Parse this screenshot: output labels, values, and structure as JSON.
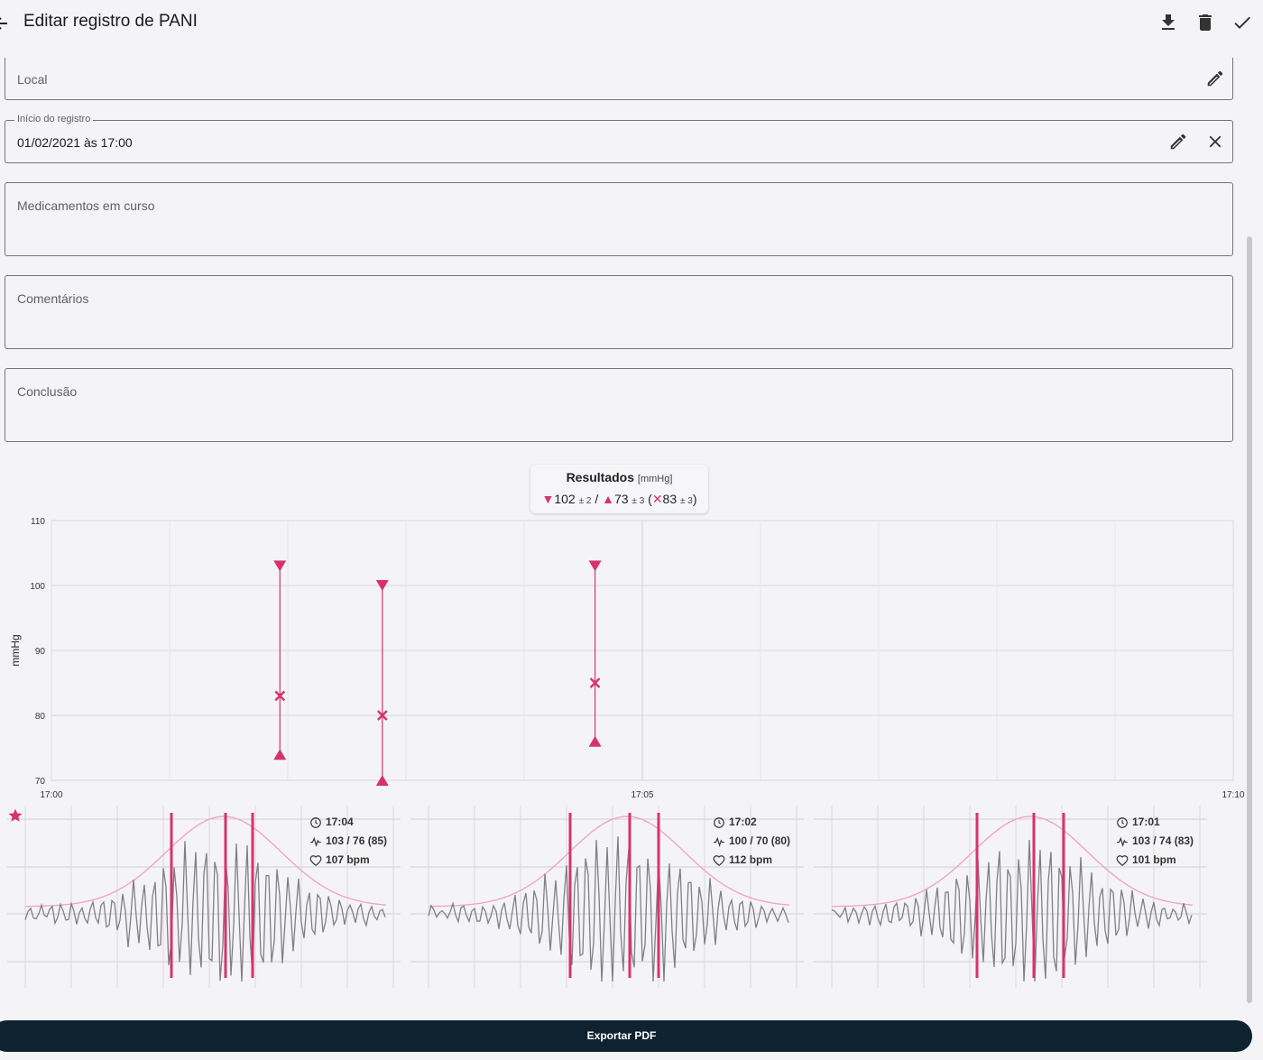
{
  "header": {
    "title": "Editar registro de PANI"
  },
  "fields": {
    "local": {
      "placeholder": "Local"
    },
    "start": {
      "label": "Início do registro",
      "value": "01/02/2021 às 17:00"
    },
    "meds": {
      "placeholder": "Medicamentos em curso"
    },
    "comments": {
      "placeholder": "Comentários"
    },
    "conclusion": {
      "placeholder": "Conclusão"
    }
  },
  "results": {
    "title": "Resultados",
    "unit": "[mmHg]",
    "systolic": "102",
    "systolic_sd": "± 2",
    "diastolic": "73",
    "diastolic_sd": "± 3",
    "mean": "83",
    "mean_sd": "± 3",
    "sep": "/",
    "open": "(",
    "close": ")"
  },
  "chart_data": {
    "type": "scatter",
    "ylabel": "mmHg",
    "xlabel": "",
    "ylim": [
      70,
      110
    ],
    "yticks": [
      70,
      80,
      90,
      100,
      110
    ],
    "xticks": [
      "17:00",
      "17:05",
      "17:10"
    ],
    "xlim_minutes": [
      0,
      10
    ],
    "grid": true,
    "color": "#d6336c",
    "measurements": [
      {
        "time": "17:01:56",
        "systolic": 103,
        "diastolic": 74,
        "mean": 83
      },
      {
        "time": "17:02:48",
        "systolic": 100,
        "diastolic": 70,
        "mean": 80
      },
      {
        "time": "17:04:36",
        "systolic": 103,
        "diastolic": 76,
        "mean": 85
      }
    ]
  },
  "snapshots": [
    {
      "time": "17:04",
      "pressure": "103 / 76 (85)",
      "rate": "107 bpm",
      "favorite": true
    },
    {
      "time": "17:02",
      "pressure": "100 / 70 (80)",
      "rate": "112 bpm",
      "favorite": false
    },
    {
      "time": "17:01",
      "pressure": "103 / 74 (83)",
      "rate": "101 bpm",
      "favorite": false
    }
  ],
  "footer": {
    "export_label": "Exportar PDF"
  }
}
